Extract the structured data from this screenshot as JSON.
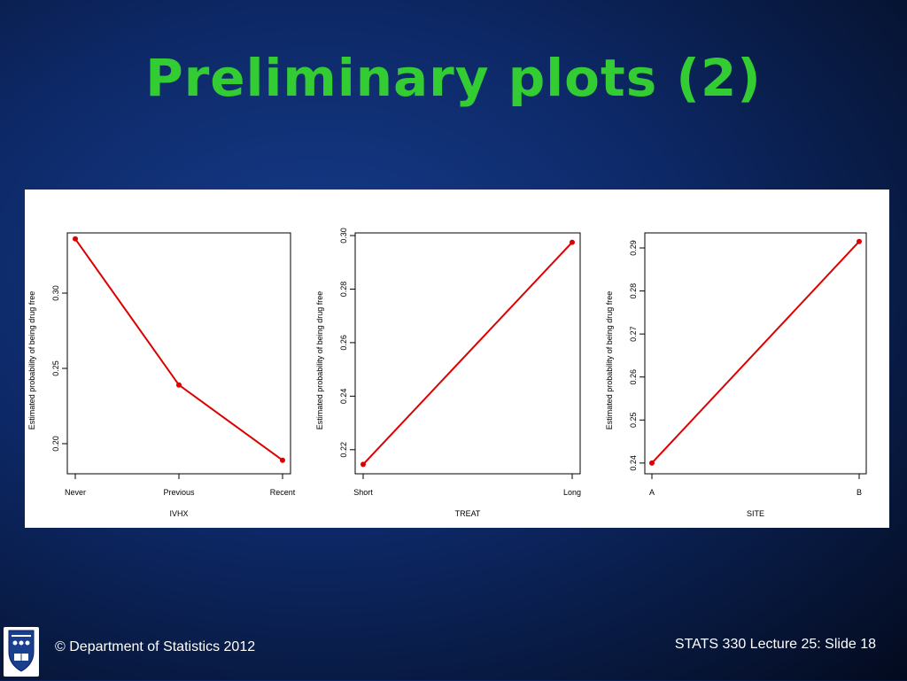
{
  "slide": {
    "title": "Preliminary plots (2)",
    "footer_left": "© Department of Statistics 2012",
    "footer_right": "STATS 330 Lecture 25: Slide 18",
    "logo_icon": "university-crest-icon"
  },
  "colors": {
    "line": "#dd0000",
    "title": "#33cc33"
  },
  "chart_data": [
    {
      "type": "line",
      "xlabel": "IVHX",
      "ylabel": "Estimated probability of being drug free",
      "categories": [
        "Never",
        "Previous",
        "Recent"
      ],
      "values": [
        0.336,
        0.239,
        0.189
      ],
      "ylim": [
        0.18,
        0.34
      ],
      "yticks": [
        "0.20",
        "0.25",
        "0.30"
      ]
    },
    {
      "type": "line",
      "xlabel": "TREAT",
      "ylabel": "Estimated probability of being drug free",
      "categories": [
        "Short",
        "Long"
      ],
      "values": [
        0.2145,
        0.2975
      ],
      "ylim": [
        0.211,
        0.301
      ],
      "yticks": [
        "0.22",
        "0.24",
        "0.26",
        "0.28",
        "0.30"
      ]
    },
    {
      "type": "line",
      "xlabel": "SITE",
      "ylabel": "Estimated probability of being drug free",
      "categories": [
        "A",
        "B"
      ],
      "values": [
        0.24,
        0.2915
      ],
      "ylim": [
        0.2375,
        0.2935
      ],
      "yticks": [
        "0.24",
        "0.25",
        "0.26",
        "0.27",
        "0.28",
        "0.29"
      ]
    }
  ]
}
